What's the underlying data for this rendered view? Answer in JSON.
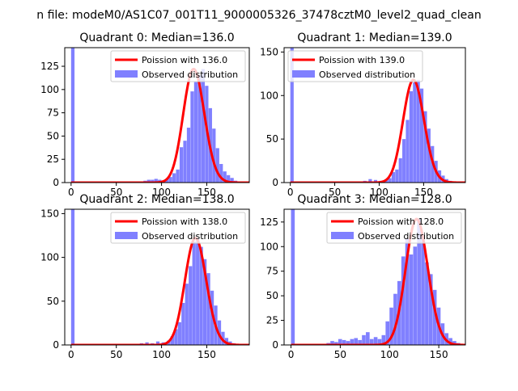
{
  "figure": {
    "suptitle": "n file: modeM0/AS1C07_001T11_9000005326_37478cztM0_level2_quad_clean"
  },
  "colors": {
    "hist_fill": "#8080ff",
    "curve": "#ff0000",
    "axes": "#000000",
    "background": "#ffffff"
  },
  "chart_data": [
    {
      "type": "bar",
      "title": "Quadrant 0: Median=136.0",
      "xlim": [
        -7,
        197
      ],
      "ylim": [
        0,
        145
      ],
      "xticks": [
        0,
        50,
        100,
        150
      ],
      "yticks": [
        0,
        25,
        50,
        75,
        100,
        125
      ],
      "legend_position": "upper-right",
      "series": [
        {
          "name": "Poission with 136.0",
          "kind": "curve",
          "mean": 136.0
        },
        {
          "name": "Observed distribution",
          "kind": "histogram",
          "bin_width": 3.8,
          "bins": [
            [
              0,
              145
            ],
            [
              80,
              2
            ],
            [
              84,
              3
            ],
            [
              88,
              3
            ],
            [
              92,
              4
            ],
            [
              96,
              3
            ],
            [
              100,
              2
            ],
            [
              104,
              4
            ],
            [
              108,
              6
            ],
            [
              112,
              10
            ],
            [
              116,
              14
            ],
            [
              120,
              38
            ],
            [
              124,
              45
            ],
            [
              128,
              59
            ],
            [
              132,
              98
            ],
            [
              136,
              108
            ],
            [
              140,
              115
            ],
            [
              144,
              122
            ],
            [
              148,
              104
            ],
            [
              152,
              80
            ],
            [
              156,
              58
            ],
            [
              160,
              37
            ],
            [
              164,
              20
            ],
            [
              168,
              12
            ],
            [
              172,
              8
            ],
            [
              176,
              5
            ],
            [
              180,
              2
            ],
            [
              184,
              1
            ]
          ]
        }
      ]
    },
    {
      "type": "bar",
      "title": "Quadrant 1: Median=139.0",
      "xlim": [
        -7,
        197
      ],
      "ylim": [
        0,
        155
      ],
      "xticks": [
        0,
        50,
        100,
        150
      ],
      "yticks": [
        0,
        50,
        100,
        150
      ],
      "legend_position": "upper-left",
      "series": [
        {
          "name": "Poission with 139.0",
          "kind": "curve",
          "mean": 139.0
        },
        {
          "name": "Observed distribution",
          "kind": "histogram",
          "bin_width": 3.8,
          "bins": [
            [
              0,
              155
            ],
            [
              82,
              2
            ],
            [
              88,
              4
            ],
            [
              94,
              3
            ],
            [
              100,
              2
            ],
            [
              106,
              3
            ],
            [
              110,
              5
            ],
            [
              114,
              12
            ],
            [
              118,
              15
            ],
            [
              122,
              28
            ],
            [
              126,
              50
            ],
            [
              130,
              72
            ],
            [
              134,
              105
            ],
            [
              138,
              115
            ],
            [
              142,
              118
            ],
            [
              146,
              108
            ],
            [
              150,
              82
            ],
            [
              154,
              62
            ],
            [
              158,
              42
            ],
            [
              162,
              25
            ],
            [
              166,
              14
            ],
            [
              170,
              8
            ],
            [
              174,
              4
            ],
            [
              178,
              2
            ]
          ]
        }
      ]
    },
    {
      "type": "bar",
      "title": "Quadrant 2: Median=138.0",
      "xlim": [
        -7,
        197
      ],
      "ylim": [
        0,
        155
      ],
      "xticks": [
        0,
        50,
        100,
        150
      ],
      "yticks": [
        0,
        50,
        100,
        150
      ],
      "legend_position": "upper-right",
      "series": [
        {
          "name": "Poission with 138.0",
          "kind": "curve",
          "mean": 138.0
        },
        {
          "name": "Observed distribution",
          "kind": "histogram",
          "bin_width": 3.8,
          "bins": [
            [
              0,
              155
            ],
            [
              76,
              2
            ],
            [
              82,
              3
            ],
            [
              88,
              2
            ],
            [
              94,
              4
            ],
            [
              100,
              3
            ],
            [
              106,
              5
            ],
            [
              110,
              10
            ],
            [
              114,
              18
            ],
            [
              118,
              26
            ],
            [
              122,
              48
            ],
            [
              126,
              70
            ],
            [
              130,
              90
            ],
            [
              134,
              118
            ],
            [
              138,
              122
            ],
            [
              142,
              112
            ],
            [
              146,
              98
            ],
            [
              150,
              82
            ],
            [
              154,
              62
            ],
            [
              158,
              45
            ],
            [
              162,
              28
            ],
            [
              166,
              15
            ],
            [
              170,
              8
            ],
            [
              174,
              4
            ],
            [
              178,
              2
            ]
          ]
        }
      ]
    },
    {
      "type": "bar",
      "title": "Quadrant 3: Median=128.0",
      "xlim": [
        -7,
        177
      ],
      "ylim": [
        0,
        138
      ],
      "xticks": [
        0,
        50,
        100,
        150
      ],
      "yticks": [
        0,
        25,
        50,
        75,
        100,
        125
      ],
      "legend_position": "upper-right",
      "series": [
        {
          "name": "Poission with 128.0",
          "kind": "curve",
          "mean": 128.0
        },
        {
          "name": "Observed distribution",
          "kind": "histogram",
          "bin_width": 3.8,
          "bins": [
            [
              0,
              138
            ],
            [
              36,
              2
            ],
            [
              40,
              4
            ],
            [
              44,
              3
            ],
            [
              48,
              6
            ],
            [
              52,
              5
            ],
            [
              56,
              4
            ],
            [
              60,
              6
            ],
            [
              64,
              7
            ],
            [
              68,
              5
            ],
            [
              72,
              10
            ],
            [
              76,
              13
            ],
            [
              80,
              6
            ],
            [
              84,
              8
            ],
            [
              88,
              6
            ],
            [
              92,
              10
            ],
            [
              96,
              24
            ],
            [
              100,
              38
            ],
            [
              104,
              52
            ],
            [
              108,
              65
            ],
            [
              112,
              90
            ],
            [
              116,
              108
            ],
            [
              120,
              92
            ],
            [
              124,
              100
            ],
            [
              128,
              128
            ],
            [
              132,
              112
            ],
            [
              136,
              84
            ],
            [
              140,
              72
            ],
            [
              144,
              56
            ],
            [
              148,
              38
            ],
            [
              152,
              22
            ],
            [
              156,
              12
            ],
            [
              160,
              7
            ],
            [
              164,
              4
            ],
            [
              168,
              2
            ]
          ]
        }
      ]
    }
  ]
}
